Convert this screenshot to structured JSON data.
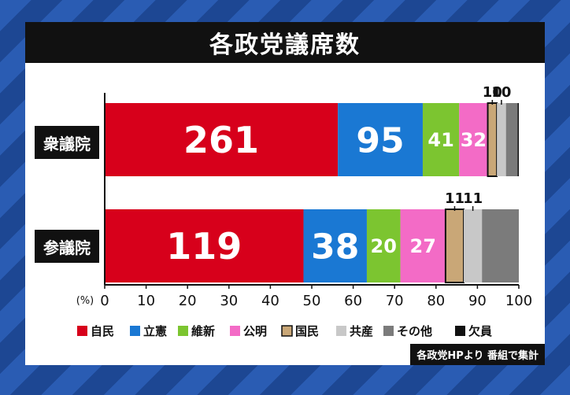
{
  "title": "各政党議席数",
  "source_note": "各政党HPより 番組で集計",
  "colors": {
    "自民": "#d7001b",
    "立憲": "#1a78d3",
    "維新": "#7cc530",
    "公明": "#f36bc6",
    "国民": "#c9a777",
    "共産": "#c8c8c8",
    "その他": "#7b7b7b",
    "欠員": "#111111"
  },
  "chart_data": {
    "type": "bar",
    "orientation": "horizontal",
    "stacked": true,
    "title": "各政党議席数",
    "xlabel": "(%)",
    "xlim": [
      0,
      100
    ],
    "x_ticks": [
      0,
      10,
      20,
      30,
      40,
      50,
      60,
      70,
      80,
      90,
      100
    ],
    "categories": [
      "衆議院",
      "参議院"
    ],
    "series": [
      {
        "name": "自民",
        "seats": [
          261,
          119
        ],
        "share_pct": [
          56.3,
          48.0
        ]
      },
      {
        "name": "立憲",
        "seats": [
          95,
          38
        ],
        "share_pct": [
          20.5,
          15.3
        ]
      },
      {
        "name": "維新",
        "seats": [
          41,
          20
        ],
        "share_pct": [
          8.8,
          8.1
        ]
      },
      {
        "name": "公明",
        "seats": [
          32,
          27
        ],
        "share_pct": [
          6.9,
          10.9
        ]
      },
      {
        "name": "国民",
        "seats": [
          10,
          11
        ],
        "share_pct": [
          2.2,
          4.4
        ]
      },
      {
        "name": "共産",
        "seats": [
          10,
          11
        ],
        "share_pct": [
          2.2,
          4.4
        ]
      },
      {
        "name": "その他",
        "seats": [
          null,
          null
        ],
        "share_pct": [
          2.8,
          8.9
        ]
      },
      {
        "name": "欠員",
        "seats": [
          null,
          null
        ],
        "share_pct": [
          0.3,
          0.0
        ]
      }
    ],
    "legend": [
      "自民",
      "立憲",
      "維新",
      "公明",
      "国民",
      "共産",
      "その他",
      "欠員"
    ],
    "legend_position": "bottom",
    "grid": false
  }
}
